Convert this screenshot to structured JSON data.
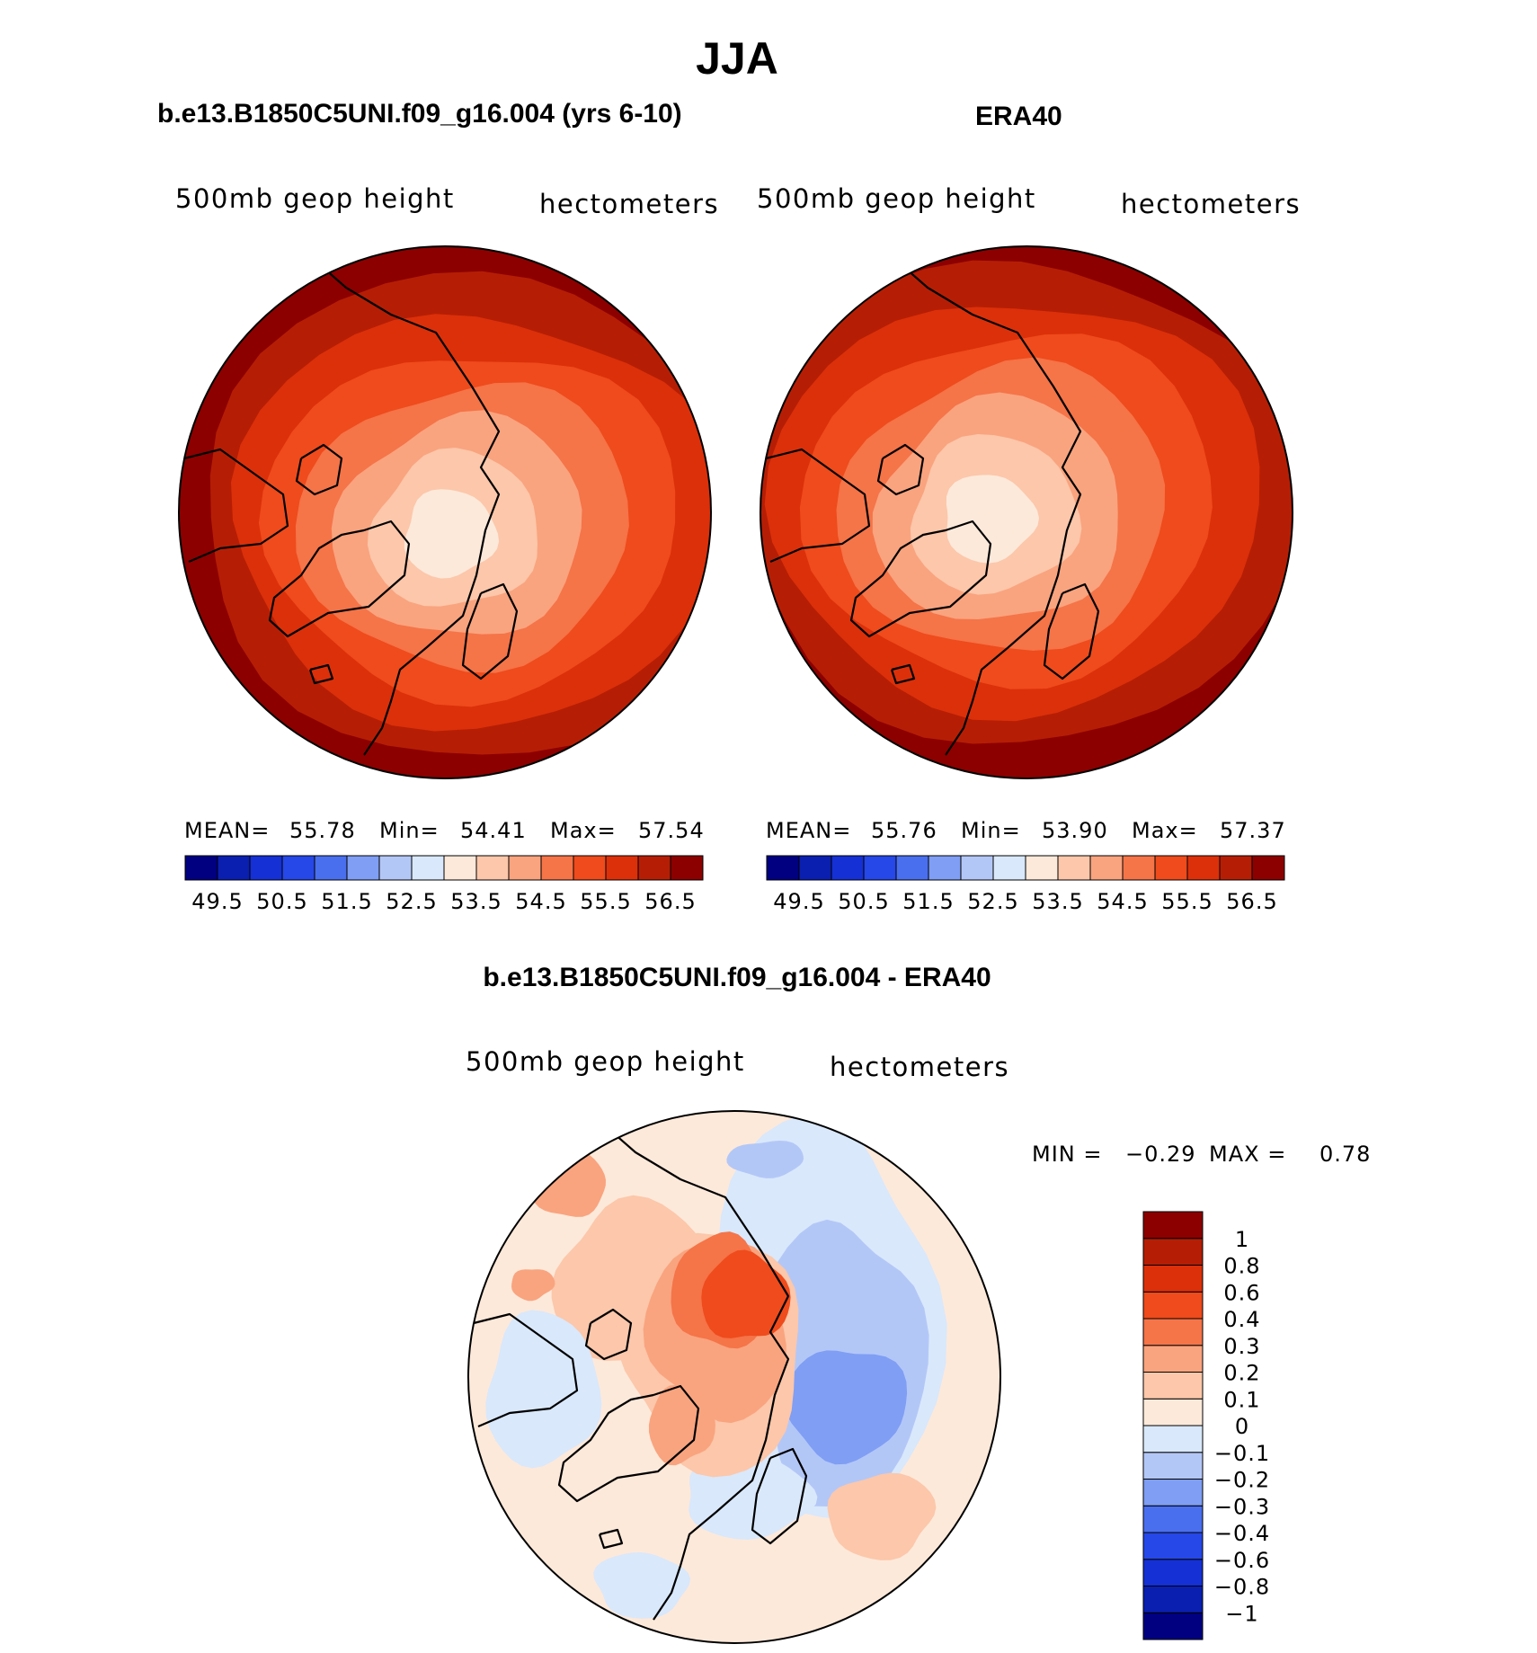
{
  "title": "JJA",
  "colors": {
    "outline": "#000000",
    "scale_abs": [
      "#000080",
      "#0a1fb0",
      "#1530d4",
      "#2648e8",
      "#4a6fee",
      "#7f9ef4",
      "#b3c7f7",
      "#d9e8fb",
      "#fde9da",
      "#fcc7aa",
      "#f9a47f",
      "#f57448",
      "#ef4b1c",
      "#dc300a",
      "#b51e05",
      "#8c0000"
    ],
    "scale_diff": [
      "#000080",
      "#0a1fb0",
      "#1530d4",
      "#2648e8",
      "#4a6fee",
      "#7f9ef4",
      "#b3c7f7",
      "#d9e8fb",
      "#fde9da",
      "#fcc7aa",
      "#f9a47f",
      "#f57448",
      "#ef4b1c",
      "#dc300a",
      "#b51e05",
      "#8c0000"
    ]
  },
  "chart_data": [
    {
      "type": "heatmap",
      "id": "model",
      "title": "b.e13.B1850C5UNI.f09_g16.004 (yrs 6-10)",
      "subtitle_left": "500mb geop height",
      "subtitle_right": "hectometers",
      "projection": "north polar stereographic",
      "stats": {
        "mean_label": "MEAN=",
        "mean": "55.78",
        "min_label": "Min=",
        "min": "54.41",
        "max_label": "Max=",
        "max": "57.54"
      },
      "colorbar_ticks": [
        "49.5",
        "50.5",
        "51.5",
        "52.5",
        "53.5",
        "54.5",
        "55.5",
        "56.5"
      ],
      "levels": [
        49.5,
        50,
        50.5,
        51,
        51.5,
        52,
        52.5,
        53,
        53.5,
        54,
        54.5,
        55,
        55.5,
        56,
        56.5
      ],
      "contour_bands": [
        56.5,
        56,
        55.5,
        55,
        54.5,
        54,
        53.5
      ],
      "pole_offset": [
        0.14,
        0.02
      ]
    },
    {
      "type": "heatmap",
      "id": "obs",
      "title": "ERA40",
      "subtitle_left": "500mb geop height",
      "subtitle_right": "hectometers",
      "projection": "north polar stereographic",
      "stats": {
        "mean_label": "MEAN=",
        "mean": "55.76",
        "min_label": "Min=",
        "min": "53.90",
        "max_label": "Max=",
        "max": "57.37"
      },
      "colorbar_ticks": [
        "49.5",
        "50.5",
        "51.5",
        "52.5",
        "53.5",
        "54.5",
        "55.5",
        "56.5"
      ],
      "levels": [
        49.5,
        50,
        50.5,
        51,
        51.5,
        52,
        52.5,
        53,
        53.5,
        54,
        54.5,
        55,
        55.5,
        56,
        56.5
      ],
      "contour_bands": [
        56.5,
        56,
        55.5,
        55,
        54.5,
        54,
        53.5
      ],
      "pole_offset": [
        -0.02,
        -0.04
      ]
    },
    {
      "type": "heatmap",
      "id": "diff",
      "title": "b.e13.B1850C5UNI.f09_g16.004 - ERA40",
      "subtitle_left": "500mb geop height",
      "subtitle_right": "hectometers",
      "projection": "north polar stereographic",
      "stats": {
        "min_label": "MIN =",
        "min": "−0.29",
        "max_label": "MAX =",
        "max": "0.78"
      },
      "levels": [
        -1,
        -0.8,
        -0.6,
        -0.4,
        -0.3,
        -0.2,
        -0.1,
        0,
        0.1,
        0.2,
        0.3,
        0.4,
        0.6,
        0.8,
        1
      ],
      "colorbar_ticks": [
        "1",
        "0.8",
        "0.6",
        "0.4",
        "0.3",
        "0.2",
        "0.1",
        "0",
        "−0.1",
        "−0.2",
        "−0.3",
        "−0.4",
        "−0.6",
        "−0.8",
        "−1"
      ]
    }
  ]
}
